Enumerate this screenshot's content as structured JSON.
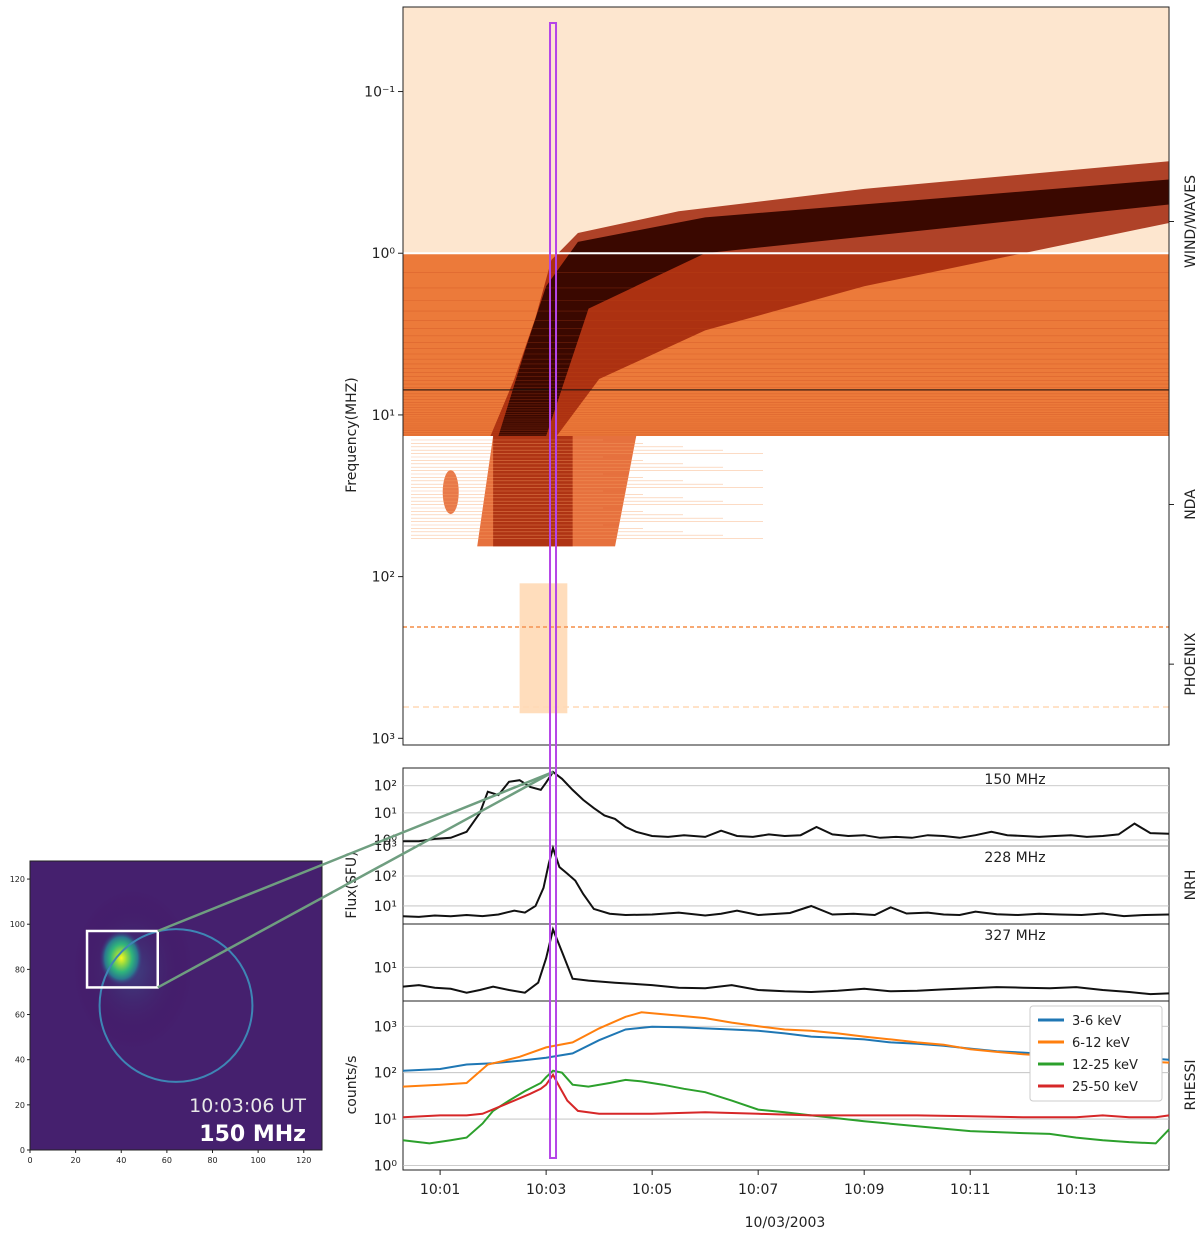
{
  "figure": {
    "date_label": "10/03/2003",
    "time_ticks": [
      "10:01",
      "10:03",
      "10:05",
      "10:07",
      "10:09",
      "10:11",
      "10:13"
    ],
    "time_tick_minutes": [
      1,
      3,
      5,
      7,
      9,
      11,
      13
    ],
    "time_range_minutes": [
      0.3,
      14.75
    ],
    "highlight_time_minutes": 3.13,
    "highlight_color": "#b545e8"
  },
  "chart_data": [
    {
      "type": "heatmap",
      "name": "dynamic-spectrum",
      "ylabel": "Frequency(MHZ)",
      "y_scale": "log-inverted",
      "ylim": [
        0.03,
        1100
      ],
      "y_ticks": [
        0.1,
        1,
        10,
        100,
        1000
      ],
      "y_tick_labels": [
        "10⁻¹",
        "10⁰",
        "10¹",
        "10²",
        "10³"
      ],
      "instruments": [
        {
          "label": "WIND/WAVES",
          "freq_range": [
            0.03,
            13.5
          ]
        },
        {
          "label": "NDA",
          "freq_range": [
            13.5,
            65
          ]
        },
        {
          "label": "PHOENIX",
          "freq_range": [
            110,
            1000
          ]
        }
      ],
      "colormap": [
        "#ffffff",
        "#ffd9b5",
        "#f7a064",
        "#e2581c",
        "#a1250a",
        "#3a0800",
        "#1a0000"
      ]
    },
    {
      "type": "line",
      "name": "nrh-flux",
      "ylabel": "Flux(SFU)",
      "instrument_label": "NRH",
      "y_scale": "log",
      "panels": [
        {
          "label": "150 MHz",
          "ylim": [
            0.6,
            450
          ],
          "y_ticks": [
            1,
            10,
            100
          ],
          "y_tick_labels": [
            "10⁰",
            "10¹",
            "10²"
          ],
          "x": [
            0.3,
            0.6,
            0.9,
            1.2,
            1.5,
            1.75,
            1.9,
            2.1,
            2.3,
            2.5,
            2.7,
            2.9,
            3.0,
            3.13,
            3.3,
            3.5,
            3.7,
            3.9,
            4.1,
            4.3,
            4.5,
            4.7,
            5.0,
            5.3,
            5.6,
            6.0,
            6.3,
            6.6,
            6.9,
            7.2,
            7.5,
            7.8,
            8.1,
            8.4,
            8.7,
            9.0,
            9.3,
            9.6,
            9.9,
            10.2,
            10.5,
            10.8,
            11.1,
            11.4,
            11.7,
            12.0,
            12.3,
            12.6,
            12.9,
            13.2,
            13.5,
            13.8,
            14.1,
            14.4,
            14.75
          ],
          "values": [
            0.9,
            0.9,
            1.1,
            1.2,
            2.0,
            10,
            60,
            45,
            140,
            160,
            90,
            70,
            130,
            320,
            180,
            70,
            30,
            15,
            8,
            6,
            3,
            2,
            1.4,
            1.3,
            1.5,
            1.3,
            2.2,
            1.4,
            1.3,
            1.6,
            1.4,
            1.5,
            3.0,
            1.6,
            1.4,
            1.5,
            1.2,
            1.3,
            1.2,
            1.5,
            1.4,
            1.2,
            1.5,
            2.0,
            1.5,
            1.4,
            1.3,
            1.4,
            1.5,
            1.3,
            1.4,
            1.6,
            4.0,
            1.8,
            1.7
          ]
        },
        {
          "label": "228 MHz",
          "ylim": [
            2.5,
            1000
          ],
          "y_ticks": [
            10,
            100,
            1000
          ],
          "y_tick_labels": [
            "10¹",
            "10²",
            "10³"
          ],
          "x": [
            0.3,
            0.6,
            0.9,
            1.2,
            1.5,
            1.8,
            2.1,
            2.4,
            2.6,
            2.8,
            2.95,
            3.05,
            3.13,
            3.25,
            3.4,
            3.55,
            3.7,
            3.9,
            4.2,
            4.5,
            5.0,
            5.5,
            6.0,
            6.3,
            6.6,
            7.0,
            7.3,
            7.6,
            8.0,
            8.4,
            8.8,
            9.2,
            9.5,
            9.8,
            10.2,
            10.5,
            10.8,
            11.1,
            11.5,
            11.9,
            12.3,
            12.7,
            13.1,
            13.5,
            13.9,
            14.3,
            14.75
          ],
          "values": [
            4.5,
            4.3,
            4.8,
            4.5,
            5.0,
            4.6,
            5.2,
            7.0,
            6.0,
            10,
            40,
            260,
            850,
            200,
            120,
            70,
            25,
            8,
            5.5,
            5.0,
            5.2,
            6.0,
            4.8,
            5.5,
            7.0,
            5.0,
            5.4,
            5.8,
            10,
            5.2,
            5.5,
            5.0,
            9.0,
            5.6,
            6.0,
            5.2,
            5.0,
            6.5,
            5.3,
            5.0,
            5.5,
            5.2,
            5.0,
            5.6,
            4.6,
            5.0,
            5.2
          ]
        },
        {
          "label": "327 MHz",
          "ylim": [
            2.2,
            70
          ],
          "y_ticks": [
            10
          ],
          "y_tick_labels": [
            "10¹"
          ],
          "x": [
            0.3,
            0.6,
            0.9,
            1.2,
            1.5,
            1.75,
            2.0,
            2.3,
            2.6,
            2.85,
            3.0,
            3.13,
            3.3,
            3.5,
            3.8,
            4.3,
            5.0,
            5.5,
            6.0,
            6.5,
            7.0,
            7.5,
            8.0,
            8.5,
            9.0,
            9.5,
            10.0,
            10.5,
            11.0,
            11.5,
            12.0,
            12.5,
            13.0,
            13.5,
            14.0,
            14.4,
            14.75
          ],
          "values": [
            4.2,
            4.5,
            4.0,
            3.8,
            3.2,
            3.6,
            4.2,
            3.6,
            3.2,
            5.0,
            15,
            55,
            20,
            6.0,
            5.5,
            5.0,
            4.5,
            4.0,
            3.9,
            4.5,
            3.6,
            3.4,
            3.3,
            3.5,
            3.8,
            3.4,
            3.5,
            3.7,
            3.9,
            4.1,
            4.0,
            3.9,
            4.1,
            3.6,
            3.3,
            3.0,
            3.1
          ]
        }
      ]
    },
    {
      "type": "line",
      "name": "rhessi-counts",
      "ylabel": "counts/s",
      "instrument_label": "RHESSI",
      "y_scale": "log",
      "ylim": [
        0.8,
        3500
      ],
      "y_ticks": [
        1,
        10,
        100,
        1000
      ],
      "y_tick_labels": [
        "10⁰",
        "10¹",
        "10²",
        "10³"
      ],
      "legend_position": "top-right",
      "series": [
        {
          "name": "3-6 keV",
          "color": "#1f77b4",
          "x": [
            0.3,
            1.0,
            1.5,
            2.0,
            2.5,
            3.0,
            3.5,
            4.0,
            4.5,
            5.0,
            5.5,
            6.0,
            6.5,
            7.0,
            7.5,
            8.0,
            8.5,
            9.0,
            9.5,
            10.0,
            10.5,
            11.0,
            11.5,
            12.0,
            12.5,
            13.0,
            13.5,
            14.0,
            14.5,
            14.75
          ],
          "values": [
            110,
            120,
            150,
            160,
            180,
            210,
            260,
            500,
            850,
            980,
            950,
            900,
            850,
            800,
            700,
            600,
            560,
            520,
            450,
            420,
            380,
            330,
            290,
            270,
            250,
            240,
            220,
            210,
            200,
            190
          ]
        },
        {
          "name": "6-12 keV",
          "color": "#ff7f0e",
          "x": [
            0.3,
            1.0,
            1.5,
            1.9,
            2.2,
            2.5,
            3.0,
            3.5,
            4.0,
            4.5,
            4.8,
            5.0,
            5.5,
            6.0,
            6.5,
            7.0,
            7.5,
            8.0,
            8.5,
            9.0,
            9.5,
            10.0,
            10.5,
            11.0,
            11.5,
            12.0,
            12.5,
            13.0,
            13.5,
            14.0,
            14.5,
            14.75
          ],
          "values": [
            50,
            55,
            60,
            150,
            180,
            220,
            350,
            450,
            900,
            1600,
            2000,
            1900,
            1700,
            1500,
            1200,
            1000,
            850,
            800,
            700,
            600,
            520,
            450,
            400,
            320,
            280,
            250,
            230,
            200,
            190,
            180,
            170,
            165
          ]
        },
        {
          "name": "12-25 keV",
          "color": "#2ca02c",
          "x": [
            0.3,
            0.8,
            1.2,
            1.5,
            1.8,
            2.0,
            2.3,
            2.6,
            2.9,
            3.0,
            3.13,
            3.3,
            3.5,
            3.8,
            4.2,
            4.5,
            4.8,
            5.2,
            5.6,
            6.0,
            6.5,
            7.0,
            7.5,
            8.0,
            9.0,
            10.0,
            11.0,
            12.0,
            12.5,
            13.0,
            13.5,
            14.0,
            14.5,
            14.75
          ],
          "values": [
            3.5,
            3.0,
            3.5,
            4.0,
            8,
            15,
            25,
            40,
            60,
            80,
            110,
            100,
            55,
            50,
            60,
            70,
            65,
            55,
            45,
            38,
            25,
            16,
            14,
            12,
            9,
            7,
            5.5,
            5,
            4.8,
            4,
            3.5,
            3.2,
            3,
            6
          ]
        },
        {
          "name": "25-50 keV",
          "color": "#d62728",
          "x": [
            0.3,
            1.0,
            1.5,
            1.8,
            2.1,
            2.4,
            2.7,
            2.9,
            3.0,
            3.13,
            3.25,
            3.4,
            3.6,
            4.0,
            5.0,
            6.0,
            7.0,
            8.0,
            9.0,
            10.0,
            11.0,
            12.0,
            13.0,
            13.5,
            14.0,
            14.5,
            14.75
          ],
          "values": [
            11,
            12,
            12,
            13,
            18,
            25,
            35,
            45,
            55,
            90,
            50,
            25,
            15,
            13,
            13,
            14,
            13,
            12,
            12,
            12,
            11.5,
            11,
            11,
            12,
            11,
            11,
            12
          ]
        }
      ]
    },
    {
      "type": "heatmap",
      "name": "nrh-image",
      "xlim": [
        0,
        128
      ],
      "ylim": [
        0,
        128
      ],
      "x_ticks": [
        0,
        20,
        40,
        60,
        80,
        100,
        120
      ],
      "y_ticks": [
        0,
        20,
        40,
        60,
        80,
        100,
        120
      ],
      "timestamp": "10:03:06 UT",
      "frequency": "150 MHz",
      "source_center": [
        40,
        85
      ],
      "zoom_box": [
        25,
        72,
        56,
        97
      ],
      "solar_limb": {
        "cx": 64,
        "cy": 64,
        "r": 33.5
      }
    }
  ]
}
